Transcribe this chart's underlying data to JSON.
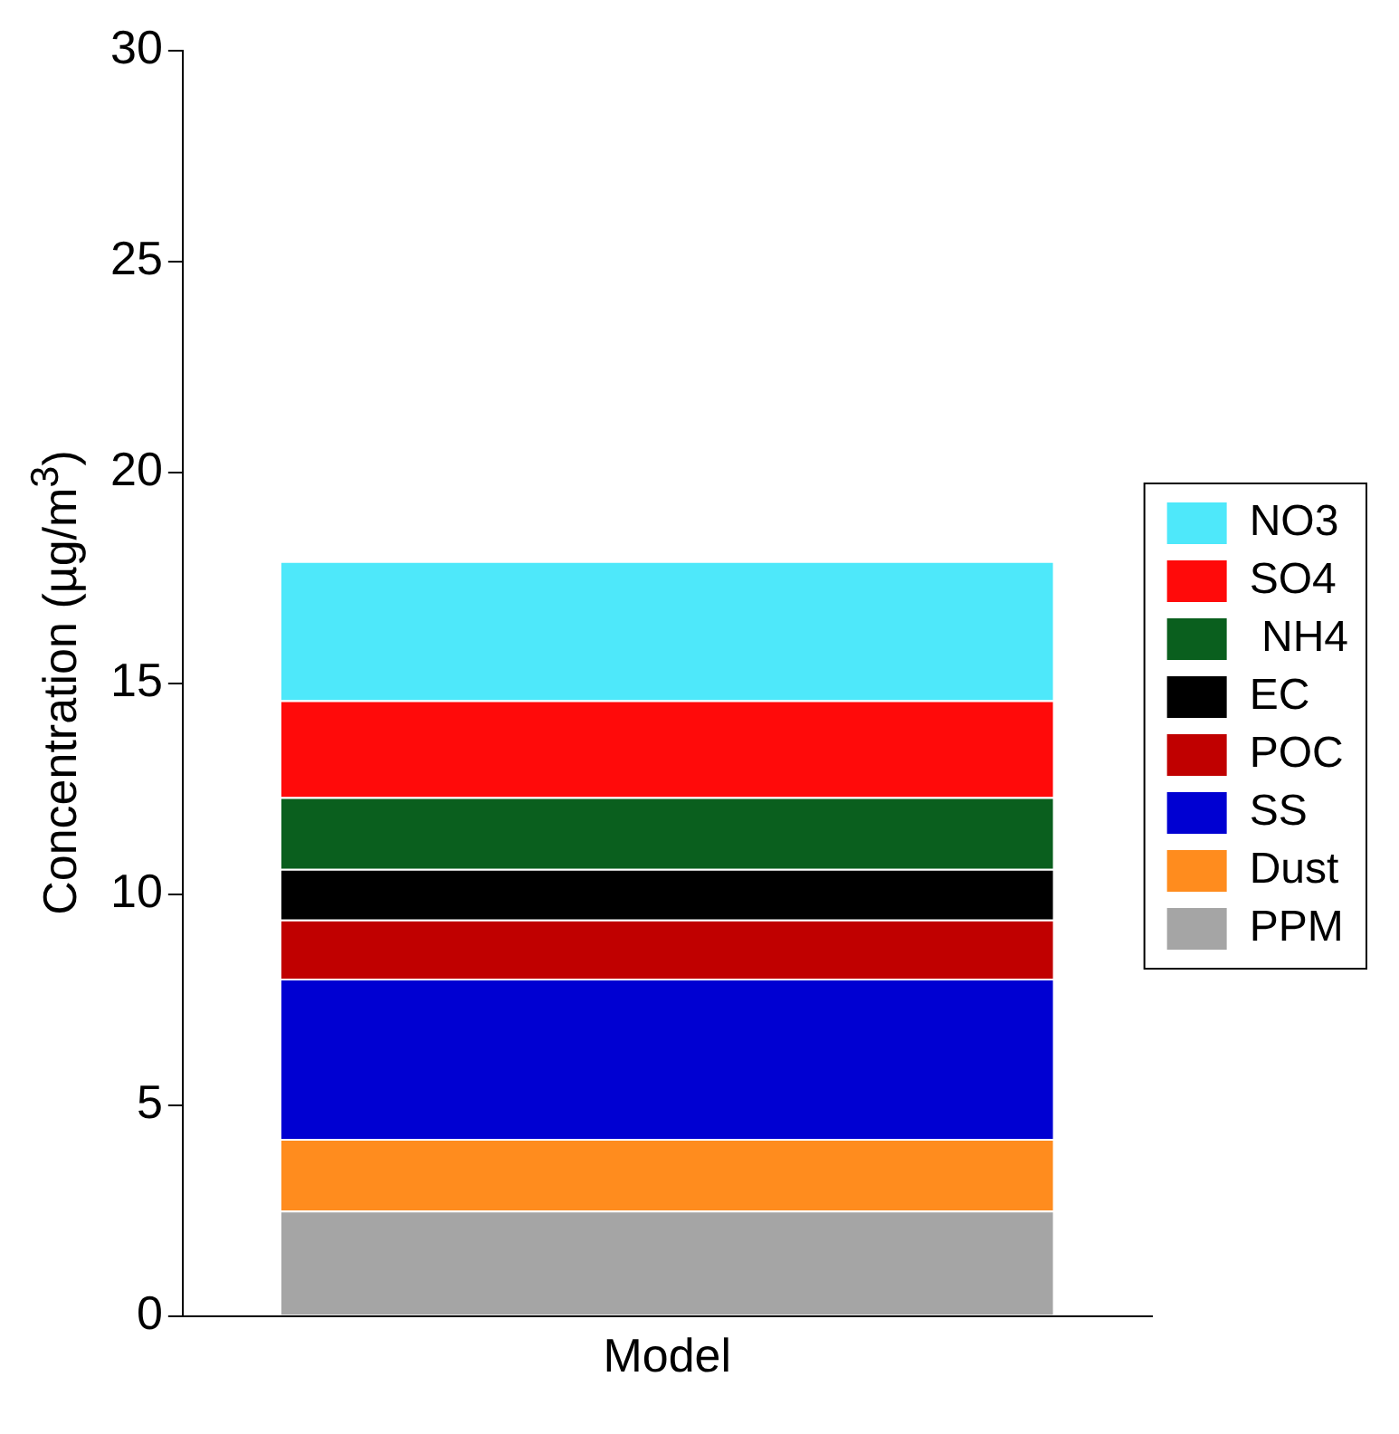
{
  "chart_data": {
    "type": "bar",
    "stacked": true,
    "ylabel": "Concentration (µg/m$^{3}$)",
    "categories": [
      "Model"
    ],
    "ylim": [
      0,
      30
    ],
    "yticks": [
      0,
      5,
      10,
      15,
      20,
      25,
      30
    ],
    "grid": false,
    "legend": "right",
    "series": [
      {
        "name": "PPM",
        "color": "#a5a5a5",
        "values": [
          2.5
        ]
      },
      {
        "name": "Dust",
        "color": "#ff8c1e",
        "values": [
          1.7
        ]
      },
      {
        "name": "SS",
        "color": "#0000d2",
        "values": [
          3.8
        ]
      },
      {
        "name": "POC",
        "color": "#c00000",
        "values": [
          1.4
        ]
      },
      {
        "name": "EC",
        "color": "#000000",
        "values": [
          1.2
        ]
      },
      {
        "name": " NH4",
        "color": "#0a5f1e",
        "values": [
          1.7
        ]
      },
      {
        "name": "SO4",
        "color": "#ff0a0a",
        "values": [
          2.3
        ]
      },
      {
        "name": "NO3",
        "color": "#4ee8fa",
        "values": [
          3.3
        ]
      }
    ]
  }
}
